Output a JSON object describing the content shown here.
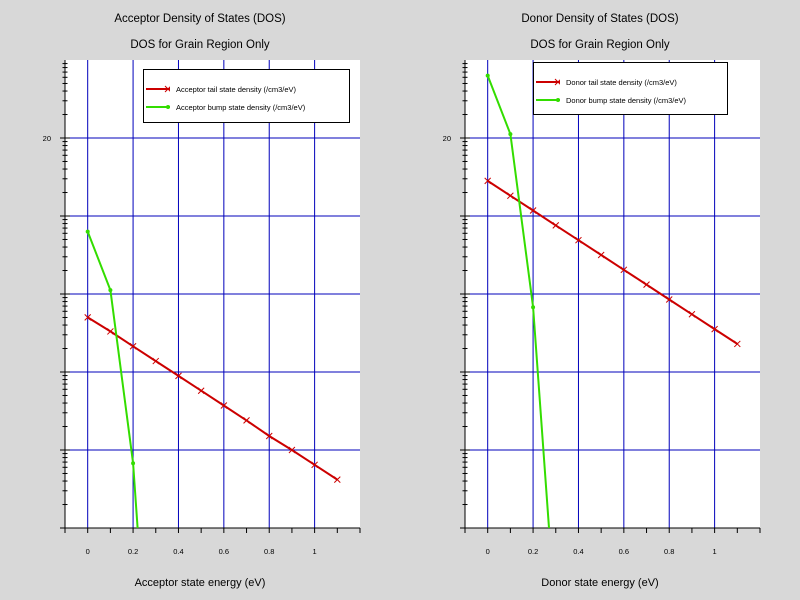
{
  "chart_data": [
    {
      "type": "line",
      "title": "Acceptor Density of States (DOS)",
      "subtitle": "DOS for Grain Region Only",
      "xlabel": "Acceptor state energy (eV)",
      "ylabel": "",
      "xlim": [
        -0.1,
        1.2
      ],
      "ylim": [
        15,
        21
      ],
      "yscale": "log10",
      "grid": true,
      "legend_position": "top-right",
      "x_ticks": [
        {
          "value": 0,
          "label": "0"
        },
        {
          "value": 0.2,
          "label": "0.2"
        },
        {
          "value": 0.4,
          "label": "0.4"
        },
        {
          "value": 0.6,
          "label": "0.6"
        },
        {
          "value": 0.8,
          "label": "0.8"
        },
        {
          "value": 1,
          "label": "1"
        }
      ],
      "y_ticks": [
        {
          "value": 20,
          "label": "20"
        },
        {
          "value": 19,
          "label": ""
        },
        {
          "value": 18,
          "label": ""
        },
        {
          "value": 17,
          "label": ""
        },
        {
          "value": 16,
          "label": ""
        }
      ],
      "series": [
        {
          "name": "Acceptor tail state density (/cm3/eV)",
          "color": "#cc0000",
          "marker": "x",
          "x": [
            0,
            0.1,
            0.2,
            0.3,
            0.4,
            0.5,
            0.6,
            0.7,
            0.8,
            0.9,
            1.0,
            1.1
          ],
          "y": [
            17.7,
            17.52,
            17.33,
            17.14,
            16.95,
            16.76,
            16.57,
            16.38,
            16.18,
            16.0,
            15.81,
            15.62
          ]
        },
        {
          "name": "Acceptor bump state density (/cm3/eV)",
          "color": "#33dd00",
          "marker": "o",
          "x": [
            0,
            0.1,
            0.2,
            0.22
          ],
          "y": [
            18.8,
            18.05,
            15.83,
            15.0
          ]
        }
      ]
    },
    {
      "type": "line",
      "title": "Donor Density of States (DOS)",
      "subtitle": "DOS for Grain Region Only",
      "xlabel": "Donor state energy (eV)",
      "ylabel": "",
      "xlim": [
        -0.1,
        1.2
      ],
      "ylim": [
        15,
        21
      ],
      "yscale": "log10",
      "grid": true,
      "legend_position": "top-right",
      "x_ticks": [
        {
          "value": 0,
          "label": "0"
        },
        {
          "value": 0.2,
          "label": "0.2"
        },
        {
          "value": 0.4,
          "label": "0.4"
        },
        {
          "value": 0.6,
          "label": "0.6"
        },
        {
          "value": 0.8,
          "label": "0.8"
        },
        {
          "value": 1,
          "label": "1"
        }
      ],
      "y_ticks": [
        {
          "value": 20,
          "label": "20"
        },
        {
          "value": 19,
          "label": ""
        },
        {
          "value": 18,
          "label": ""
        },
        {
          "value": 17,
          "label": ""
        },
        {
          "value": 16,
          "label": ""
        }
      ],
      "series": [
        {
          "name": "Donor tail state density (/cm3/eV)",
          "color": "#cc0000",
          "marker": "x",
          "x": [
            0,
            0.1,
            0.2,
            0.3,
            0.4,
            0.5,
            0.6,
            0.7,
            0.8,
            0.9,
            1.0,
            1.1
          ],
          "y": [
            19.45,
            19.26,
            19.07,
            18.88,
            18.69,
            18.5,
            18.31,
            18.12,
            17.93,
            17.74,
            17.55,
            17.36
          ]
        },
        {
          "name": "Donor bump state density (/cm3/eV)",
          "color": "#33dd00",
          "marker": "o",
          "x": [
            0,
            0.1,
            0.2,
            0.27
          ],
          "y": [
            20.8,
            20.05,
            17.83,
            15.0
          ]
        }
      ]
    }
  ]
}
